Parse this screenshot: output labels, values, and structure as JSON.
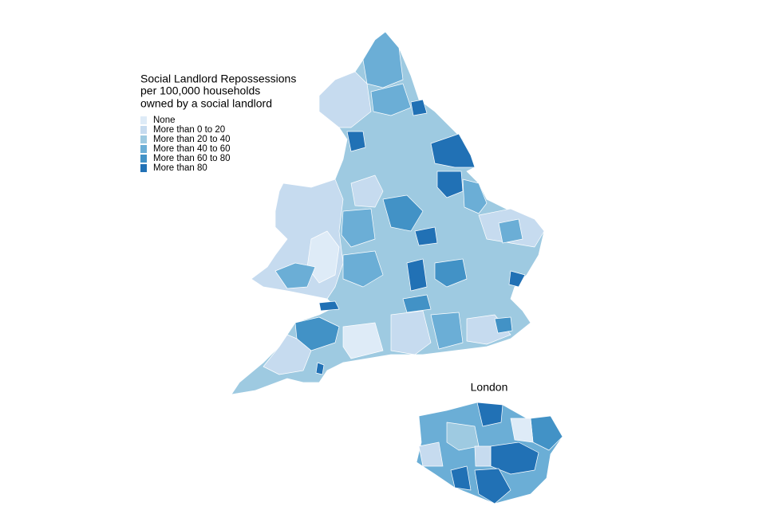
{
  "legend": {
    "title": [
      "Social Landlord Repossessions",
      "per 100,000 households",
      "owned by a social landlord"
    ],
    "items": [
      {
        "label": "None",
        "color": "#deebf7"
      },
      {
        "label": "More than 0 to 20",
        "color": "#c6dbef"
      },
      {
        "label": "More than 20 to 40",
        "color": "#9ecae1"
      },
      {
        "label": "More than 40 to 60",
        "color": "#6baed6"
      },
      {
        "label": "More than 60 to 80",
        "color": "#4292c6"
      },
      {
        "label": "More than 80",
        "color": "#2171b5"
      }
    ]
  },
  "inset": {
    "label": "London"
  }
}
